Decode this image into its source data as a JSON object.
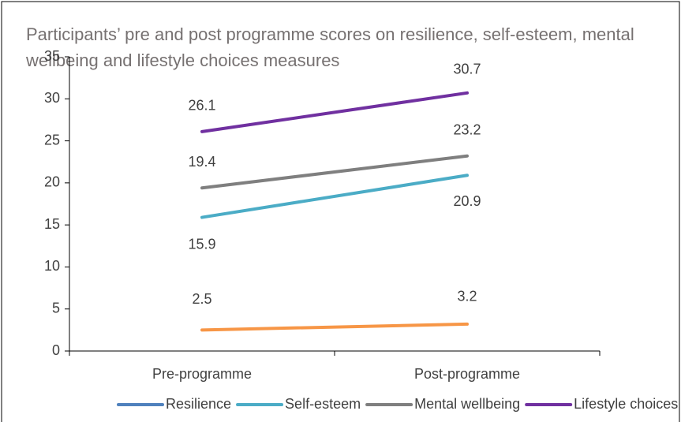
{
  "chart_data": {
    "type": "line",
    "title": "Participants’ pre and post programme scores on resilience, self-esteem, mental wellbeing and lifestyle choices measures",
    "categories": [
      "Pre-programme",
      "Post-programme"
    ],
    "series": [
      {
        "name": "Resilience",
        "color": "#f79646",
        "legend_color": "#4f81bd",
        "values": [
          2.5,
          3.2
        ]
      },
      {
        "name": "Self-esteem",
        "color": "#4bacc6",
        "values": [
          15.9,
          20.9
        ]
      },
      {
        "name": "Mental wellbeing",
        "color": "#7f7f7f",
        "values": [
          19.4,
          23.2
        ]
      },
      {
        "name": "Lifestyle choices",
        "color": "#7030a0",
        "values": [
          26.1,
          30.7
        ]
      }
    ],
    "ylim": [
      0,
      35
    ],
    "yticks": [
      0,
      5,
      10,
      15,
      20,
      25,
      30,
      35
    ],
    "grid": false,
    "legend": "bottom"
  }
}
